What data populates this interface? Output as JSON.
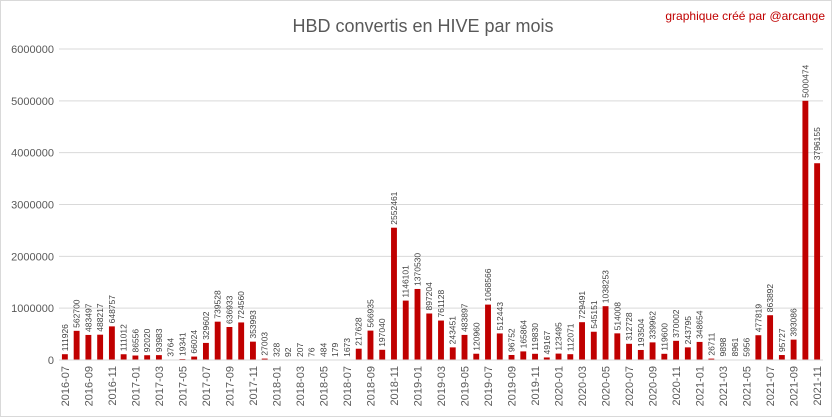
{
  "chart_data": {
    "type": "bar",
    "title": "HBD convertis en HIVE par mois",
    "credit": "graphique créé par @arcange",
    "xlabel": "",
    "ylabel": "",
    "ylim": [
      0,
      6000000
    ],
    "yticks": [
      "0",
      "1000000",
      "2000000",
      "3000000",
      "4000000",
      "5000000",
      "6000000"
    ],
    "grid": true,
    "legend": "none",
    "colors": {
      "bar": "#c00000",
      "grid": "#d9d9d9",
      "credit": "#c00000"
    },
    "categories": [
      "2016-07",
      "2016-08",
      "2016-09",
      "2016-10",
      "2016-11",
      "2016-12",
      "2017-01",
      "2017-02",
      "2017-03",
      "2017-04",
      "2017-05",
      "2017-06",
      "2017-07",
      "2017-08",
      "2017-09",
      "2017-10",
      "2017-11",
      "2017-12",
      "2018-01",
      "2018-02",
      "2018-03",
      "2018-04",
      "2018-05",
      "2018-06",
      "2018-07",
      "2018-08",
      "2018-09",
      "2018-10",
      "2018-11",
      "2018-12",
      "2019-01",
      "2019-02",
      "2019-03",
      "2019-04",
      "2019-05",
      "2019-06",
      "2019-07",
      "2019-08",
      "2019-09",
      "2019-10",
      "2019-11",
      "2019-12",
      "2020-01",
      "2020-02",
      "2020-03",
      "2020-04",
      "2020-05",
      "2020-06",
      "2020-07",
      "2020-08",
      "2020-09",
      "2020-10",
      "2020-11",
      "2020-12",
      "2021-01",
      "2021-02",
      "2021-03",
      "2021-04",
      "2021-05",
      "2021-06",
      "2021-07",
      "2021-08",
      "2021-09",
      "2021-10",
      "2021-11"
    ],
    "values": [
      111926,
      562700,
      483497,
      488217,
      648757,
      111012,
      86556,
      92020,
      93983,
      3764,
      19341,
      66024,
      329602,
      739528,
      636933,
      724560,
      353993,
      27003,
      328,
      92,
      207,
      76,
      484,
      179,
      1673,
      217628,
      566935,
      197040,
      2552461,
      1146101,
      1370530,
      897204,
      761128,
      243451,
      483897,
      120960,
      1068566,
      512443,
      96752,
      165864,
      119830,
      49167,
      123495,
      112071,
      729491,
      545151,
      1038253,
      514008,
      312728,
      193504,
      339962,
      119600,
      370002,
      243795,
      348654,
      26711,
      9898,
      8961,
      5956,
      477819,
      863892,
      95727,
      393086,
      5000474,
      3796155
    ],
    "data_labels": [
      "111926",
      "562700",
      "483497",
      "488217",
      "648757",
      "111012",
      "86556",
      "92020",
      "93983",
      "3764",
      "19341",
      "66024",
      "329602",
      "739528",
      "636933",
      "724560",
      "353993",
      "27003",
      "328",
      "92",
      "207",
      "76",
      "484",
      "179",
      "1673",
      "217628",
      "566935",
      "197040",
      "2552461",
      "1146101",
      "1370530",
      "897204",
      "761128",
      "243451",
      "483897",
      "120960",
      "1068566",
      "512443",
      "96752",
      "165864",
      "119830",
      "49167",
      "123495",
      "112071",
      "729491",
      "545151",
      "1038253",
      "514008",
      "312728",
      "193504",
      "339962",
      "119600",
      "370002",
      "243795",
      "348654",
      "26711",
      "9898",
      "8961",
      "5956",
      "477819",
      "863892",
      "95727",
      "393086",
      "5000474",
      "3796155"
    ]
  }
}
